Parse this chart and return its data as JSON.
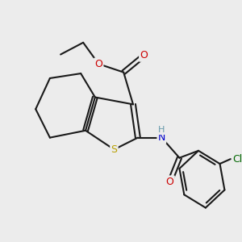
{
  "bg_color": "#ececec",
  "bond_color": "#1a1a1a",
  "S_color": "#b8a000",
  "N_color": "#0000cc",
  "O_color": "#cc0000",
  "Cl_color": "#006600",
  "H_color": "#6699aa",
  "fig_size": [
    3.0,
    3.0
  ],
  "dpi": 100,
  "xlim": [
    0,
    10
  ],
  "ylim": [
    0,
    10
  ]
}
